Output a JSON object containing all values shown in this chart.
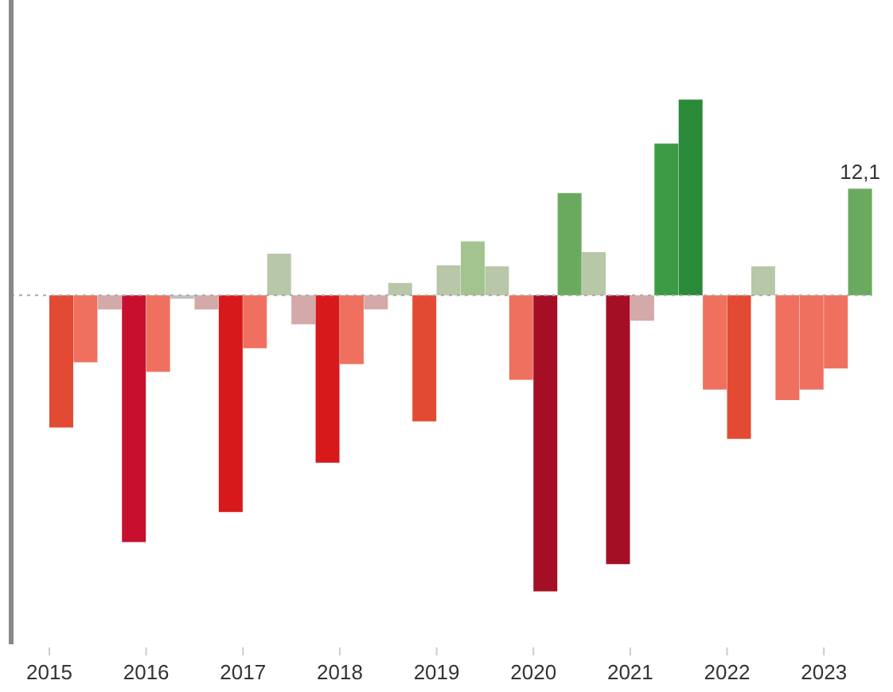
{
  "chart_data": {
    "type": "bar",
    "categories": [
      "2015",
      null,
      null,
      null,
      "2016",
      null,
      null,
      null,
      "2017",
      null,
      null,
      null,
      "2018",
      null,
      null,
      null,
      "2019",
      null,
      null,
      null,
      "2020",
      null,
      null,
      null,
      "2021",
      null,
      null,
      null,
      "2022",
      null,
      null,
      null,
      "2023",
      null
    ],
    "values": [
      -15.0,
      -7.6,
      -1.6,
      -28.0,
      -8.7,
      -0.4,
      -1.6,
      -24.6,
      -6.0,
      4.7,
      -3.3,
      -19.0,
      -7.8,
      -1.6,
      1.4,
      -14.3,
      3.4,
      6.1,
      3.3,
      -9.6,
      -33.6,
      11.6,
      4.9,
      -30.5,
      -2.9,
      17.2,
      22.2,
      -10.7,
      -16.3,
      3.3,
      -11.9,
      -10.7,
      -8.3,
      12.1
    ],
    "colors": [
      "#e34a33",
      "#f07060",
      "#d4a9a9",
      "#c8102e",
      "#f07060",
      "#c0c0c0",
      "#d4a9a9",
      "#d7191c",
      "#f07060",
      "#b7c7a8",
      "#d4a9a9",
      "#d7191c",
      "#f07060",
      "#d4a9a9",
      "#b7c7a8",
      "#e34a33",
      "#b7c7a8",
      "#a3c48e",
      "#b7c7a8",
      "#f07060",
      "#a50f25",
      "#6aaa5e",
      "#b7c7a8",
      "#a50f25",
      "#d4a9a9",
      "#3d9a45",
      "#2a8a3a",
      "#f07060",
      "#e34a33",
      "#b7c7a8",
      "#f07060",
      "#f07060",
      "#f07060",
      "#6aaa5e"
    ],
    "value_labels": [
      null,
      null,
      null,
      null,
      null,
      null,
      null,
      null,
      null,
      null,
      null,
      null,
      null,
      null,
      null,
      null,
      null,
      null,
      null,
      null,
      null,
      null,
      null,
      null,
      null,
      null,
      null,
      null,
      null,
      null,
      null,
      null,
      null,
      "12,1"
    ],
    "ylim": [
      -39.6,
      33.5
    ],
    "tick_labels": "x",
    "ref_lines": [
      {
        "axis": "y",
        "value": 0,
        "color": "#aaaaaa",
        "line_style": "dotted"
      }
    ]
  }
}
